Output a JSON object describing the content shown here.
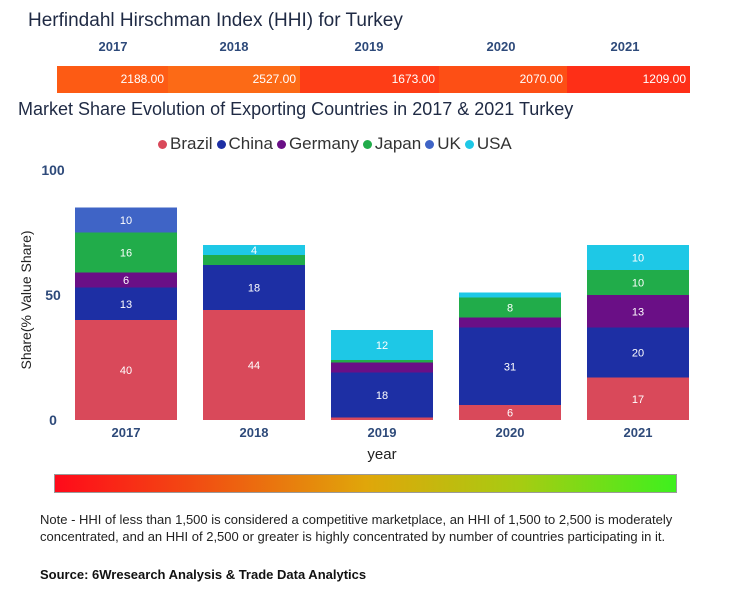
{
  "hhi": {
    "title": "Herfindahl Hirschman Index (HHI) for Turkey",
    "years": [
      "2017",
      "2018",
      "2019",
      "2020",
      "2021"
    ],
    "values": [
      "2188.00",
      "2527.00",
      "1673.00",
      "2070.00",
      "1209.00"
    ],
    "colors": [
      "#fd5b14",
      "#fc6a16",
      "#fe3d16",
      "#fd4f15",
      "#fe2f17"
    ]
  },
  "chart_data": {
    "type": "stacked-bar",
    "title": "Market Share Evolution of Exporting Countries in 2017 & 2021 Turkey",
    "xlabel": "year",
    "ylabel": "Share(% Value Share)",
    "ylim": [
      0,
      100
    ],
    "yticks": [
      0,
      50,
      100
    ],
    "categories": [
      "2017",
      "2018",
      "2019",
      "2020",
      "2021"
    ],
    "series": [
      {
        "name": "Brazil",
        "color": "#d9495a",
        "values": [
          40,
          44,
          1,
          6,
          17
        ],
        "labels": [
          "40",
          "44",
          "",
          "6",
          "17"
        ]
      },
      {
        "name": "China",
        "color": "#1d2fa4",
        "values": [
          13,
          18,
          18,
          31,
          20
        ],
        "labels": [
          "13",
          "18",
          "18",
          "31",
          "20"
        ]
      },
      {
        "name": "Germany",
        "color": "#6a0f86",
        "values": [
          6,
          0,
          4,
          4,
          13
        ],
        "labels": [
          "6",
          "",
          "",
          "",
          "13"
        ]
      },
      {
        "name": "Japan",
        "color": "#21ac4a",
        "values": [
          16,
          4,
          1,
          8,
          10
        ],
        "labels": [
          "16",
          "",
          "",
          "8",
          "10"
        ]
      },
      {
        "name": "UK",
        "color": "#3f64c6",
        "values": [
          10,
          0,
          0,
          0,
          0
        ],
        "labels": [
          "10",
          "",
          "",
          "",
          ""
        ]
      },
      {
        "name": "USA",
        "color": "#1ec8e6",
        "values": [
          0,
          4,
          12,
          2,
          10
        ],
        "labels": [
          "",
          "4",
          "12",
          "",
          "10"
        ]
      }
    ]
  },
  "scale": {
    "gradient_colors": [
      "#ff0a1a",
      "#f24a12",
      "#e0a60a",
      "#a6cc12",
      "#3ef01e"
    ]
  },
  "footer": {
    "note": "Note - HHI of less than 1,500 is considered a competitive marketplace, an HHI of 1,500 to 2,500 is moderately concentrated, and an HHI of 2,500 or greater is highly concentrated by number of countries participating in it.",
    "source": "Source: 6Wresearch Analysis & Trade Data Analytics"
  }
}
